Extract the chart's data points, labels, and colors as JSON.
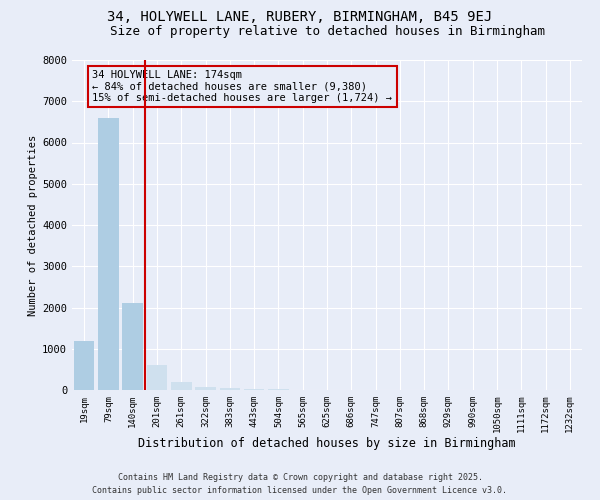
{
  "title1": "34, HOLYWELL LANE, RUBERY, BIRMINGHAM, B45 9EJ",
  "title2": "Size of property relative to detached houses in Birmingham",
  "xlabel": "Distribution of detached houses by size in Birmingham",
  "ylabel": "Number of detached properties",
  "categories": [
    "19sqm",
    "79sqm",
    "140sqm",
    "201sqm",
    "261sqm",
    "322sqm",
    "383sqm",
    "443sqm",
    "504sqm",
    "565sqm",
    "625sqm",
    "686sqm",
    "747sqm",
    "807sqm",
    "868sqm",
    "929sqm",
    "990sqm",
    "1050sqm",
    "1111sqm",
    "1172sqm",
    "1232sqm"
  ],
  "values": [
    1200,
    6600,
    2100,
    600,
    200,
    80,
    40,
    20,
    15,
    10,
    8,
    6,
    5,
    4,
    3,
    3,
    2,
    2,
    2,
    1,
    1
  ],
  "bar_color_left": "#aecde3",
  "bar_color_right": "#cfe0ee",
  "vline_x": 2.5,
  "vline_color": "#cc0000",
  "annotation_text": "34 HOLYWELL LANE: 174sqm\n← 84% of detached houses are smaller (9,380)\n15% of semi-detached houses are larger (1,724) →",
  "annotation_box_color": "#cc0000",
  "annotation_text_color": "#000000",
  "ylim": [
    0,
    8000
  ],
  "yticks": [
    0,
    1000,
    2000,
    3000,
    4000,
    5000,
    6000,
    7000,
    8000
  ],
  "footer1": "Contains HM Land Registry data © Crown copyright and database right 2025.",
  "footer2": "Contains public sector information licensed under the Open Government Licence v3.0.",
  "bg_color": "#e8edf8",
  "grid_color": "#ffffff",
  "title1_fontsize": 10,
  "title2_fontsize": 9
}
